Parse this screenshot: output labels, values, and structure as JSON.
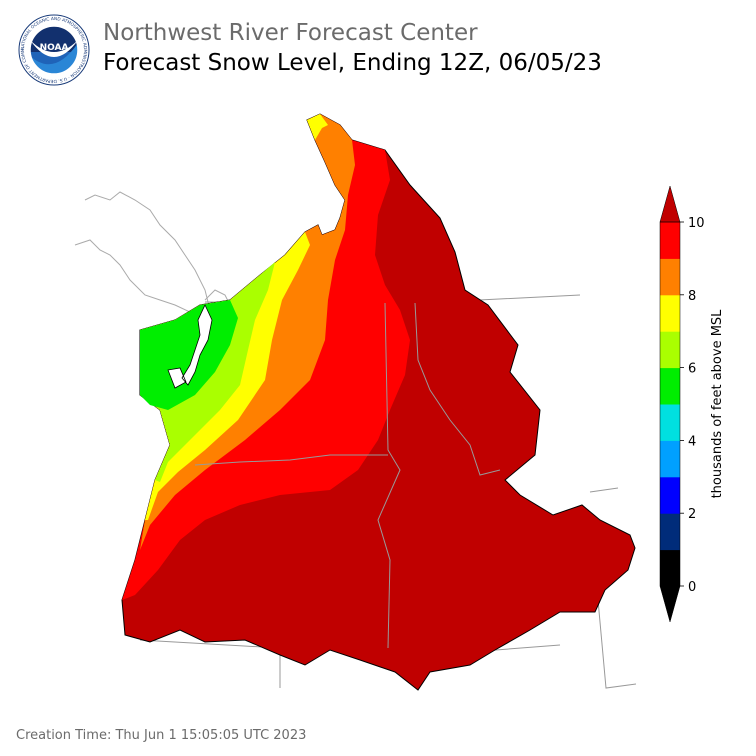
{
  "header": {
    "org": "Northwest River Forecast Center",
    "title": "Forecast Snow Level, Ending 12Z, 06/05/23"
  },
  "logo": {
    "text": "NOAA",
    "ring_text": "NATIONAL OCEANIC AND ATMOSPHERIC ADMINISTRATION · U.S. DEPARTMENT OF COMMERCE",
    "icon": "noaa-logo"
  },
  "colorbar": {
    "label": "thousands of feet above MSL",
    "ticks": [
      "0",
      "2",
      "4",
      "6",
      "8",
      "10"
    ],
    "colors": [
      "#000000",
      "#002c7a",
      "#0000ff",
      "#00a0ff",
      "#00e0e0",
      "#00ee00",
      "#aaff00",
      "#ffff00",
      "#ff8000",
      "#ff0000",
      "#c00000"
    ]
  },
  "map": {
    "colors": {
      "above_10": "#c00000",
      "8_to_10": "#ff0000",
      "8_to_9": "#ff8000",
      "7_to_8": "#ffff00",
      "6_to_7": "#aaff00",
      "5_to_6": "#00ee00"
    }
  },
  "footer": {
    "creation": "Creation Time: Thu Jun 1 15:05:05 UTC 2023"
  }
}
